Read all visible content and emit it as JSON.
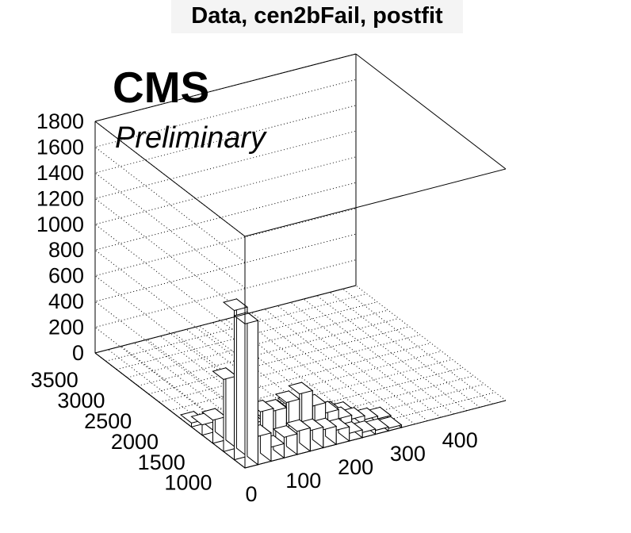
{
  "header": {
    "title": "Data, cen2bFail, postfit",
    "experiment": "CMS",
    "status": "Preliminary"
  },
  "chart_data": {
    "type": "lego",
    "title": "Data, cen2bFail, postfit",
    "xlabel": "",
    "ylabel": "",
    "zlabel": "",
    "x_range": [
      0,
      500
    ],
    "y_range": [
      800,
      3600
    ],
    "z_range": [
      0,
      1800
    ],
    "x_ticks": [
      "0",
      "100",
      "200",
      "300",
      "400"
    ],
    "y_ticks": [
      "1000",
      "1500",
      "2000",
      "2500",
      "3000",
      "3500"
    ],
    "z_ticks": [
      "0",
      "200",
      "400",
      "600",
      "800",
      "1000",
      "1200",
      "1400",
      "1600",
      "1800"
    ],
    "grid": true,
    "bins": [
      {
        "x": [
          0,
          25
        ],
        "y": [
          800,
          1000
        ],
        "z": 1120
      },
      {
        "x": [
          0,
          25
        ],
        "y": [
          1000,
          1200
        ],
        "z": 1160
      },
      {
        "x": [
          0,
          25
        ],
        "y": [
          1200,
          1400
        ],
        "z": 560
      },
      {
        "x": [
          0,
          25
        ],
        "y": [
          1400,
          1600
        ],
        "z": 180
      },
      {
        "x": [
          0,
          25
        ],
        "y": [
          1600,
          1800
        ],
        "z": 80
      },
      {
        "x": [
          0,
          25
        ],
        "y": [
          1800,
          2000
        ],
        "z": 30
      },
      {
        "x": [
          25,
          50
        ],
        "y": [
          800,
          1000
        ],
        "z": 220
      },
      {
        "x": [
          25,
          50
        ],
        "y": [
          1000,
          1200
        ],
        "z": 140
      },
      {
        "x": [
          25,
          50
        ],
        "y": [
          1200,
          1400
        ],
        "z": 60
      },
      {
        "x": [
          25,
          50
        ],
        "y": [
          1400,
          1600
        ],
        "z": 30
      },
      {
        "x": [
          50,
          75
        ],
        "y": [
          800,
          1000
        ],
        "z": 110
      },
      {
        "x": [
          50,
          75
        ],
        "y": [
          1000,
          1200
        ],
        "z": 320
      },
      {
        "x": [
          50,
          75
        ],
        "y": [
          1200,
          1400
        ],
        "z": 160
      },
      {
        "x": [
          50,
          75
        ],
        "y": [
          1400,
          1600
        ],
        "z": 40
      },
      {
        "x": [
          75,
          100
        ],
        "y": [
          800,
          1000
        ],
        "z": 160
      },
      {
        "x": [
          75,
          100
        ],
        "y": [
          1000,
          1200
        ],
        "z": 300
      },
      {
        "x": [
          75,
          100
        ],
        "y": [
          1200,
          1400
        ],
        "z": 180
      },
      {
        "x": [
          75,
          100
        ],
        "y": [
          1400,
          1600
        ],
        "z": 40
      },
      {
        "x": [
          100,
          125
        ],
        "y": [
          800,
          1000
        ],
        "z": 180
      },
      {
        "x": [
          100,
          125
        ],
        "y": [
          1000,
          1200
        ],
        "z": 340
      },
      {
        "x": [
          100,
          125
        ],
        "y": [
          1200,
          1400
        ],
        "z": 200
      },
      {
        "x": [
          100,
          125
        ],
        "y": [
          1400,
          1600
        ],
        "z": 50
      },
      {
        "x": [
          125,
          150
        ],
        "y": [
          800,
          1000
        ],
        "z": 160
      },
      {
        "x": [
          125,
          150
        ],
        "y": [
          1000,
          1200
        ],
        "z": 380
      },
      {
        "x": [
          125,
          150
        ],
        "y": [
          1200,
          1400
        ],
        "z": 220
      },
      {
        "x": [
          125,
          150
        ],
        "y": [
          1400,
          1600
        ],
        "z": 60
      },
      {
        "x": [
          150,
          175
        ],
        "y": [
          800,
          1000
        ],
        "z": 140
      },
      {
        "x": [
          150,
          175
        ],
        "y": [
          1000,
          1200
        ],
        "z": 260
      },
      {
        "x": [
          150,
          175
        ],
        "y": [
          1200,
          1400
        ],
        "z": 170
      },
      {
        "x": [
          150,
          175
        ],
        "y": [
          1400,
          1600
        ],
        "z": 40
      },
      {
        "x": [
          175,
          200
        ],
        "y": [
          800,
          1000
        ],
        "z": 110
      },
      {
        "x": [
          175,
          200
        ],
        "y": [
          1000,
          1200
        ],
        "z": 180
      },
      {
        "x": [
          175,
          200
        ],
        "y": [
          1200,
          1400
        ],
        "z": 130
      },
      {
        "x": [
          175,
          200
        ],
        "y": [
          1400,
          1600
        ],
        "z": 30
      },
      {
        "x": [
          200,
          225
        ],
        "y": [
          800,
          1000
        ],
        "z": 60
      },
      {
        "x": [
          200,
          225
        ],
        "y": [
          1000,
          1200
        ],
        "z": 110
      },
      {
        "x": [
          200,
          225
        ],
        "y": [
          1200,
          1400
        ],
        "z": 90
      },
      {
        "x": [
          225,
          250
        ],
        "y": [
          800,
          1000
        ],
        "z": 40
      },
      {
        "x": [
          225,
          250
        ],
        "y": [
          1000,
          1200
        ],
        "z": 80
      },
      {
        "x": [
          225,
          250
        ],
        "y": [
          1200,
          1400
        ],
        "z": 60
      },
      {
        "x": [
          250,
          275
        ],
        "y": [
          800,
          1000
        ],
        "z": 30
      },
      {
        "x": [
          250,
          275
        ],
        "y": [
          1000,
          1200
        ],
        "z": 50
      },
      {
        "x": [
          275,
          300
        ],
        "y": [
          800,
          1000
        ],
        "z": 20
      },
      {
        "x": [
          275,
          300
        ],
        "y": [
          1000,
          1200
        ],
        "z": 30
      }
    ]
  }
}
